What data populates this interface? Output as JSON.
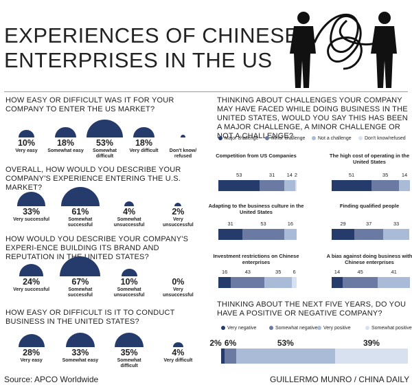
{
  "title_lines": [
    "EXPERIENCES OF CHINESE",
    "ENTERPRISES IN THE US"
  ],
  "semicircle_color": "#243b6b",
  "left_sections": [
    {
      "question": "HOW EASY OR DIFFICULT WAS IT FOR YOUR COMPANY TO ENTER THE US MARKET?",
      "items": [
        {
          "label": "Very easy",
          "value": 10,
          "value_label": "10%"
        },
        {
          "label": "Somewhat easy",
          "value": 18,
          "value_label": "18%"
        },
        {
          "label": "Somewhat difficult",
          "value": 53,
          "value_label": "53%"
        },
        {
          "label": "Very difficult",
          "value": 18,
          "value_label": "18%"
        },
        {
          "label": "Don't know/ refused",
          "value": 1
        }
      ]
    },
    {
      "question": "OVERALL,  HOW WOULD YOU DESCRIBE YOUR COMPANY'S EXPERIENCE ENTERING THE U.S. MARKET?",
      "items": [
        {
          "label": "Very successful",
          "value": 33,
          "value_label": "33%"
        },
        {
          "label": "Somewhat successful",
          "value": 61,
          "value_label": "61%"
        },
        {
          "label": "Somewhat unsuccessful",
          "value": 4,
          "value_label": "4%"
        },
        {
          "label": "Very unsuccessful",
          "value": 2,
          "value_label": "2%"
        }
      ]
    },
    {
      "question": "HOW WOULD YOU DESCRIBE YOUR COMPANY'S EXPERI-ENCE BUILDING ITS BRAND AND REPUTATION IN THE UNITED STATES?",
      "items": [
        {
          "label": "Very successful",
          "value": 24,
          "value_label": "24%"
        },
        {
          "label": "Somewhat successful",
          "value": 67,
          "value_label": "67%"
        },
        {
          "label": "Somewhat unsuccessful",
          "value": 10,
          "value_label": "10%"
        },
        {
          "label": "Very unsuccessful",
          "value": 0,
          "value_label": "0%"
        }
      ]
    },
    {
      "question": "HOW EASY OR DIFFICULT IS IT TO CONDUCT BUSINESS IN THE UNITED STATES?",
      "items": [
        {
          "label": "Very easy",
          "value": 28,
          "value_label": "28%"
        },
        {
          "label": "Somewhat easy",
          "value": 33,
          "value_label": "33%"
        },
        {
          "label": "Somewhat difficult",
          "value": 35,
          "value_label": "35%"
        },
        {
          "label": "Very difficult",
          "value": 4,
          "value_label": "4%"
        }
      ]
    }
  ],
  "challenges": {
    "question": "THINKING ABOUT CHALLENGES YOUR COMPANY MAY HAVE FACED WHILE DOING BUSINESS IN THE UNITED STATES, WOULD YOU SAY THIS HAS BEEN A MAJOR CHALLENGE, A MINOR CHALLENGE OR NOT A CHALLENGE?",
    "legend": [
      {
        "name": "Major challenge",
        "color": "#243b6b"
      },
      {
        "name": "Minor challenge",
        "color": "#6b7aa3"
      },
      {
        "name": "Not a challenge",
        "color": "#a9bbd6"
      },
      {
        "name": "Don't know/refused",
        "color": "#d8e1ef"
      }
    ],
    "charts": [
      {
        "title": "Competition from US Companies",
        "values": [
          53,
          31,
          14,
          2
        ]
      },
      {
        "title": "The high cost of operating in the United States",
        "values": [
          51,
          35,
          14
        ]
      },
      {
        "title": "Adapting to the business culture in the United States",
        "values": [
          31,
          53,
          16
        ]
      },
      {
        "title": "Finding qualified people",
        "values": [
          29,
          37,
          33
        ]
      },
      {
        "title": "Investment restrictions on Chinese enterprises",
        "values": [
          16,
          43,
          35,
          6
        ]
      },
      {
        "title": "A bias against doing business with Chinese  enterprises",
        "values": [
          14,
          45,
          41
        ]
      }
    ]
  },
  "outlook": {
    "question": "THINKING ABOUT THE NEXT FIVE YEARS, DO YOU HAVE A POSITIVE OR NEGATIVE COMPANY?",
    "legend": [
      {
        "name": "Very negative",
        "color": "#243b6b"
      },
      {
        "name": "Somewhat negative",
        "color": "#6b7aa3"
      },
      {
        "name": "Very positive",
        "color": "#a9bbd6"
      },
      {
        "name": "Somewhat positive",
        "color": "#d8e1ef"
      }
    ],
    "values": [
      2,
      6,
      53,
      39
    ],
    "value_labels": [
      "2%",
      "6%",
      "53%",
      "39%"
    ]
  },
  "source": "Source: APCO Worldwide",
  "credit": "GUILLERMO MUNRO / CHINA DAILY"
}
